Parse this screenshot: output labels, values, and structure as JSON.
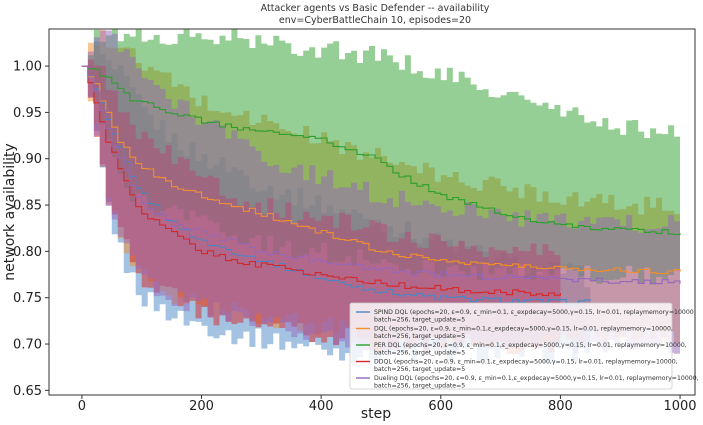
{
  "chart_data": {
    "type": "line",
    "title": "Attacker agents vs Basic Defender -- availability",
    "subtitle": "env=CyberBattleChain 10, episodes=20",
    "xlabel": "step",
    "ylabel": "network availability",
    "xlim": [
      -55,
      1025
    ],
    "ylim": [
      0.645,
      1.04
    ],
    "xticks": [
      0,
      200,
      400,
      600,
      800,
      1000
    ],
    "yticks": [
      0.65,
      0.7,
      0.75,
      0.8,
      0.85,
      0.9,
      0.95,
      1.0
    ],
    "ytick_labels": [
      "0.65",
      "0.70",
      "0.75",
      "0.80",
      "0.85",
      "0.90",
      "0.95",
      "1.00"
    ],
    "legend_position": "lower-right",
    "series": [
      {
        "name": "SPIND DQL (epochs=20, ε=0.9, ε_min=0.1, ε_expdecay=5000,γ=0.15, lr=0.01, replaymemory=10000,",
        "name_line2": "batch=256, target_update=5",
        "color": "#4a86c6",
        "x": [
          0,
          20,
          40,
          60,
          80,
          100,
          150,
          200,
          250,
          300,
          350,
          400,
          450,
          500,
          550,
          600,
          650,
          700,
          750,
          800,
          850
        ],
        "mean": [
          1.0,
          0.975,
          0.94,
          0.91,
          0.88,
          0.86,
          0.83,
          0.81,
          0.8,
          0.79,
          0.78,
          0.77,
          0.763,
          0.757,
          0.753,
          0.75,
          0.748,
          0.747,
          0.746,
          0.745,
          0.745
        ],
        "lower": [
          1.0,
          0.92,
          0.85,
          0.8,
          0.77,
          0.75,
          0.73,
          0.72,
          0.71,
          0.705,
          0.7,
          0.695,
          0.69,
          0.69,
          0.69,
          0.69,
          0.69,
          0.69,
          0.69,
          0.69,
          0.69
        ],
        "upper": [
          1.0,
          1.02,
          1.0,
          0.99,
          0.97,
          0.95,
          0.92,
          0.9,
          0.89,
          0.87,
          0.86,
          0.85,
          0.84,
          0.83,
          0.82,
          0.81,
          0.8,
          0.79,
          0.78,
          0.78,
          0.77
        ]
      },
      {
        "name": "DQL (epochs=20, ε=0.9, ε_min=0.1,ε_expdecay=5000,γ=0.15, lr=0.01, replaymemory=10000,",
        "name_line2": "batch=256, target_update=5",
        "color": "#f28e2b",
        "x": [
          0,
          20,
          40,
          60,
          80,
          100,
          150,
          200,
          250,
          300,
          350,
          400,
          450,
          500,
          550,
          600,
          650,
          700,
          750,
          800,
          850,
          900,
          950,
          1000
        ],
        "mean": [
          1.0,
          0.98,
          0.95,
          0.92,
          0.9,
          0.89,
          0.87,
          0.86,
          0.85,
          0.84,
          0.83,
          0.82,
          0.81,
          0.8,
          0.795,
          0.79,
          0.788,
          0.785,
          0.783,
          0.782,
          0.781,
          0.78,
          0.779,
          0.778
        ],
        "lower": [
          1.0,
          0.93,
          0.86,
          0.82,
          0.79,
          0.77,
          0.75,
          0.74,
          0.735,
          0.73,
          0.725,
          0.72,
          0.715,
          0.71,
          0.71,
          0.71,
          0.71,
          0.71,
          0.71,
          0.71,
          0.71,
          0.71,
          0.71,
          0.71
        ],
        "upper": [
          1.0,
          1.03,
          1.03,
          1.02,
          1.01,
          1.0,
          0.98,
          0.96,
          0.95,
          0.94,
          0.93,
          0.92,
          0.91,
          0.9,
          0.89,
          0.88,
          0.875,
          0.87,
          0.865,
          0.86,
          0.855,
          0.85,
          0.85,
          0.85
        ]
      },
      {
        "name": "PER DQL (epochs=20, ε=0.9, ε_min=0.1,ε_expdecay=5000,γ=0.15, lr=0.01, replaymemory=10000,",
        "name_line2": "batch=256, target_update=5",
        "color": "#2ca02c",
        "x": [
          0,
          20,
          40,
          60,
          80,
          100,
          150,
          200,
          250,
          300,
          350,
          400,
          450,
          500,
          550,
          600,
          650,
          700,
          750,
          800,
          850,
          900,
          950,
          1000
        ],
        "mean": [
          1.0,
          0.995,
          0.985,
          0.975,
          0.965,
          0.96,
          0.95,
          0.94,
          0.935,
          0.93,
          0.925,
          0.92,
          0.91,
          0.895,
          0.875,
          0.86,
          0.85,
          0.84,
          0.835,
          0.83,
          0.826,
          0.823,
          0.821,
          0.82
        ],
        "lower": [
          1.0,
          0.96,
          0.92,
          0.88,
          0.86,
          0.85,
          0.84,
          0.83,
          0.82,
          0.81,
          0.8,
          0.8,
          0.795,
          0.79,
          0.785,
          0.78,
          0.78,
          0.775,
          0.775,
          0.775,
          0.775,
          0.775,
          0.775,
          0.775
        ],
        "upper": [
          1.0,
          1.03,
          1.035,
          1.035,
          1.035,
          1.03,
          1.03,
          1.03,
          1.03,
          1.025,
          1.02,
          1.02,
          1.015,
          1.01,
          1.0,
          0.99,
          0.98,
          0.97,
          0.96,
          0.95,
          0.94,
          0.935,
          0.93,
          0.93
        ]
      },
      {
        "name": "DDQL (epochs=20, ε=0.9, ε_min=0.1,ε_expdecay=5000,γ=0.15, lr=0.01, replaymemory=10000,",
        "name_line2": "batch=256, target_update=5",
        "color": "#d62728",
        "x": [
          0,
          20,
          40,
          60,
          80,
          100,
          150,
          200,
          250,
          300,
          350,
          400,
          450,
          500,
          550,
          600,
          650,
          700,
          750,
          800
        ],
        "mean": [
          1.0,
          0.96,
          0.92,
          0.89,
          0.86,
          0.84,
          0.82,
          0.8,
          0.79,
          0.785,
          0.78,
          0.775,
          0.77,
          0.765,
          0.762,
          0.76,
          0.758,
          0.756,
          0.755,
          0.755
        ],
        "lower": [
          1.0,
          0.92,
          0.86,
          0.82,
          0.79,
          0.77,
          0.75,
          0.735,
          0.725,
          0.72,
          0.715,
          0.71,
          0.705,
          0.7,
          0.7,
          0.7,
          0.7,
          0.7,
          0.7,
          0.7
        ],
        "upper": [
          1.0,
          1.0,
          0.98,
          0.96,
          0.94,
          0.92,
          0.9,
          0.88,
          0.86,
          0.85,
          0.84,
          0.835,
          0.83,
          0.82,
          0.815,
          0.81,
          0.805,
          0.8,
          0.8,
          0.8
        ]
      },
      {
        "name": "Dueling DQL (epochs=20, ε=0.9, ε_min=0.1,ε_expdecay=5000,γ=0.15, lr=0.01, replaymemory=10000,",
        "name_line2": "batch=256, target_update=5",
        "color": "#9467bd",
        "x": [
          0,
          20,
          40,
          60,
          80,
          100,
          150,
          200,
          250,
          300,
          350,
          400,
          450,
          500,
          550,
          600,
          650,
          700,
          750,
          800,
          850,
          900,
          950,
          1000
        ],
        "mean": [
          1.0,
          0.97,
          0.93,
          0.9,
          0.87,
          0.85,
          0.83,
          0.82,
          0.81,
          0.8,
          0.795,
          0.79,
          0.785,
          0.78,
          0.777,
          0.775,
          0.773,
          0.772,
          0.771,
          0.77,
          0.769,
          0.768,
          0.767,
          0.767
        ],
        "lower": [
          1.0,
          0.93,
          0.86,
          0.82,
          0.79,
          0.77,
          0.75,
          0.74,
          0.73,
          0.72,
          0.715,
          0.71,
          0.705,
          0.7,
          0.7,
          0.7,
          0.7,
          0.7,
          0.7,
          0.7,
          0.7,
          0.7,
          0.7,
          0.7
        ],
        "upper": [
          1.0,
          1.04,
          1.03,
          1.02,
          1.0,
          0.99,
          0.96,
          0.94,
          0.92,
          0.9,
          0.89,
          0.88,
          0.87,
          0.86,
          0.855,
          0.85,
          0.845,
          0.84,
          0.835,
          0.83,
          0.83,
          0.83,
          0.83,
          0.83
        ]
      }
    ]
  }
}
